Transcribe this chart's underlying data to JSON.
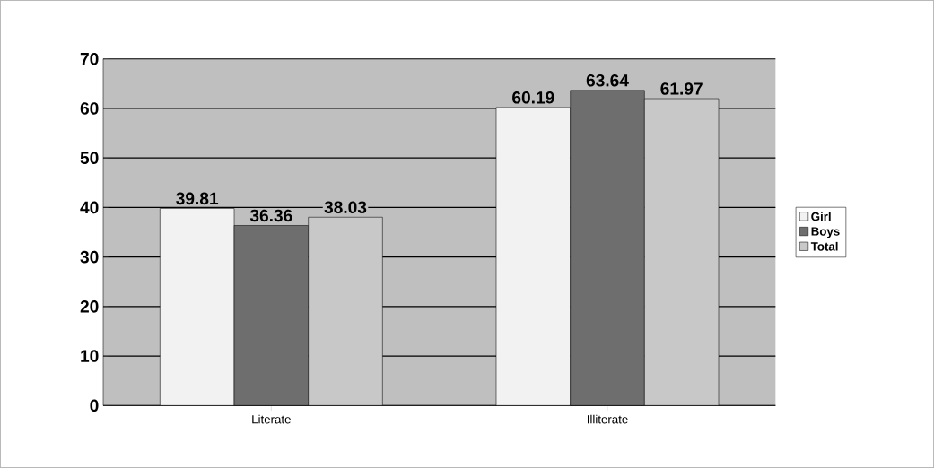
{
  "chart_data": {
    "type": "bar",
    "categories": [
      "Literate",
      "Illiterate"
    ],
    "series": [
      {
        "name": "Girl",
        "color": "#f2f2f2",
        "values": [
          39.81,
          60.19
        ]
      },
      {
        "name": "Boys",
        "color": "#6e6e6e",
        "values": [
          36.36,
          63.64
        ]
      },
      {
        "name": "Total",
        "color": "#c8c8c8",
        "values": [
          38.03,
          61.97
        ]
      }
    ],
    "ylim": [
      0,
      70
    ],
    "yticks": [
      0,
      10,
      20,
      30,
      40,
      50,
      60,
      70
    ],
    "grid": "y",
    "legend": "right",
    "data_labels": true
  }
}
